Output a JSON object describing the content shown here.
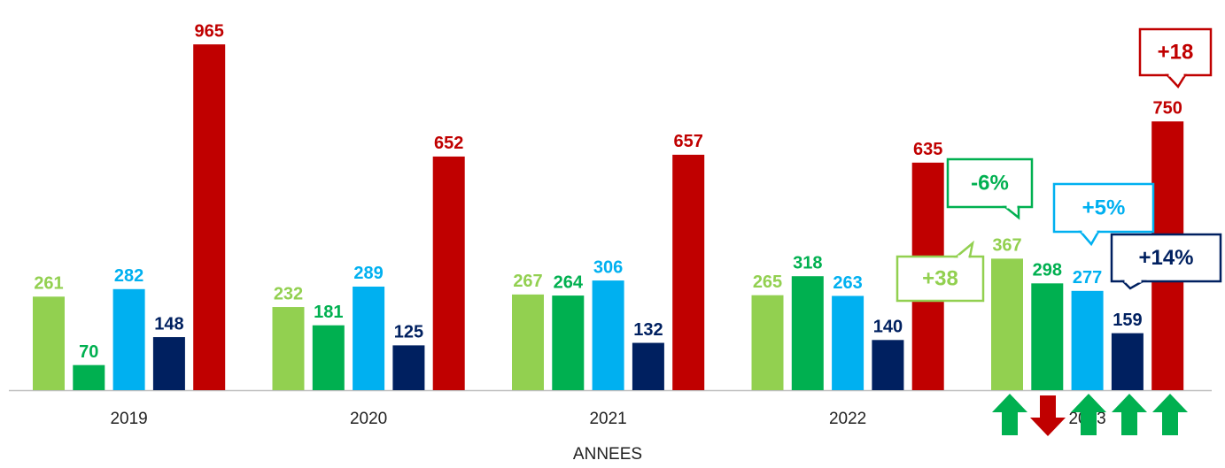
{
  "chart_data": {
    "type": "bar",
    "x_label": "ANNEES",
    "categories": [
      "2019",
      "2020",
      "2021",
      "2022",
      "2023"
    ],
    "series": [
      {
        "color": "#92d050",
        "values": [
          261,
          232,
          267,
          265,
          367
        ]
      },
      {
        "color": "#00b050",
        "values": [
          70,
          181,
          264,
          318,
          298
        ]
      },
      {
        "color": "#00b0f0",
        "values": [
          282,
          289,
          306,
          263,
          277
        ]
      },
      {
        "color": "#002060",
        "values": [
          148,
          125,
          132,
          140,
          159
        ]
      },
      {
        "color": "#c00000",
        "values": [
          965,
          652,
          657,
          635,
          750
        ]
      }
    ],
    "ylim": [
      0,
      1000
    ],
    "annotations": [
      {
        "text": "+38",
        "color": "#92d050"
      },
      {
        "text": "-6%",
        "color": "#00b050"
      },
      {
        "text": "+5%",
        "color": "#00b0f0"
      },
      {
        "text": "+14%",
        "color": "#002060"
      },
      {
        "text": "+18",
        "color": "#c00000"
      }
    ]
  }
}
